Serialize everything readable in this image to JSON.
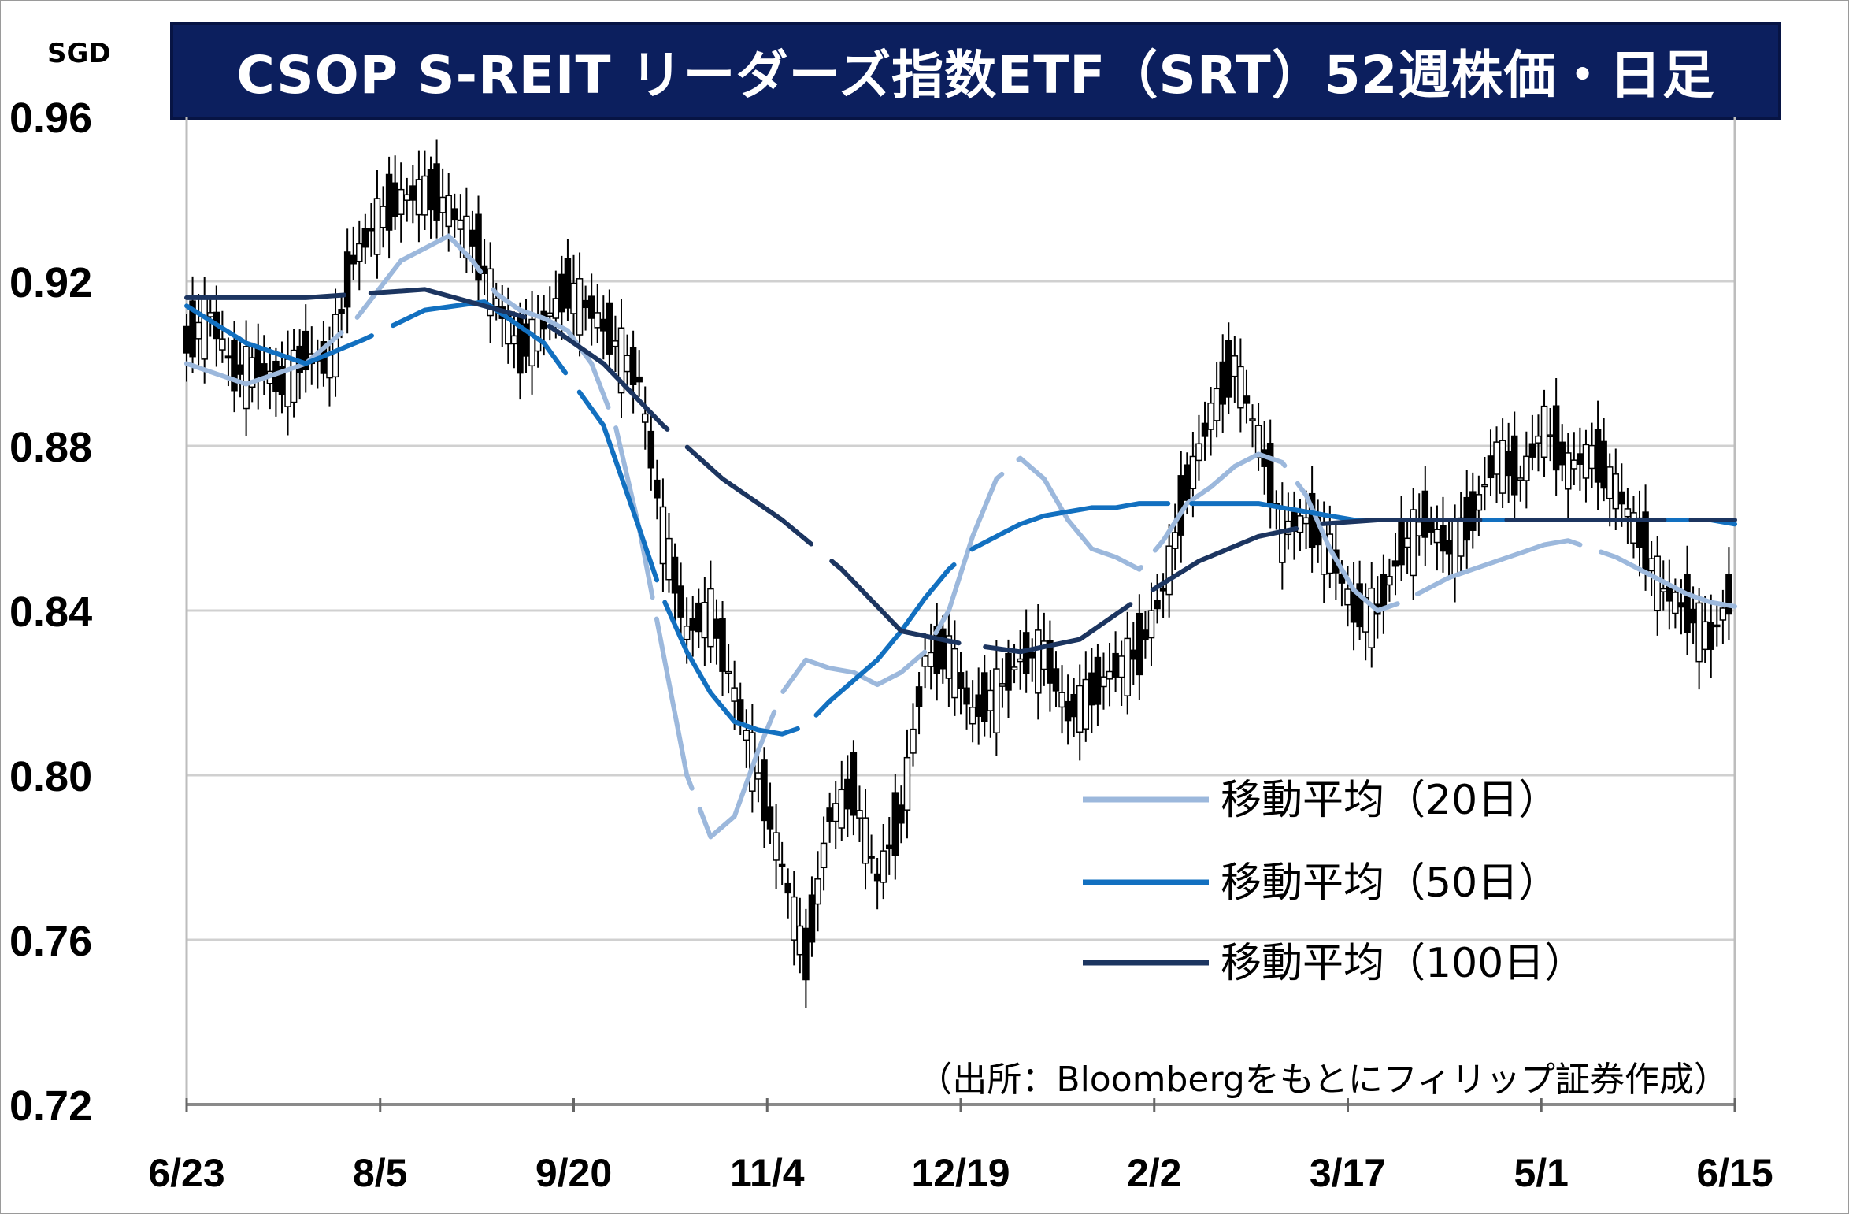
{
  "title": "CSOP S-REIT リーダーズ指数ETF（SRT）52週株価・日足",
  "unit": "SGD",
  "source": "（出所：Bloombergをもとにフィリップ証券作成）",
  "colors": {
    "title_bg": "#0c1f5e",
    "ma20": "#9cb8dc",
    "ma50": "#1270c0",
    "ma100": "#1c3560",
    "grid": "#d0d0d0"
  },
  "chart_data": {
    "type": "candlestick",
    "title": "CSOP S-REIT リーダーズ指数ETF（SRT）52週株価・日足",
    "ylabel": "SGD",
    "ylim": [
      0.72,
      0.96
    ],
    "yticks": [
      "0.96",
      "0.92",
      "0.88",
      "0.84",
      "0.80",
      "0.76",
      "0.72"
    ],
    "xticks": [
      "6/23",
      "8/5",
      "9/20",
      "11/4",
      "12/19",
      "2/2",
      "3/17",
      "5/1",
      "6/15"
    ],
    "grid": true,
    "legend_position": "bottom-right",
    "close_series": {
      "x": [
        0,
        4,
        8,
        12,
        16,
        20,
        24,
        28,
        32,
        36,
        40,
        44,
        48,
        52,
        56,
        60,
        64,
        68,
        72,
        76,
        80,
        84,
        88,
        92,
        96,
        100,
        104,
        108,
        112,
        116,
        120,
        124,
        128,
        132,
        136,
        140,
        144,
        148,
        152,
        156,
        160,
        164,
        168,
        172,
        176,
        180,
        184,
        188,
        192,
        196,
        200,
        204,
        208,
        212,
        216,
        220,
        224,
        228,
        232,
        236,
        240,
        244,
        248,
        252,
        256,
        260
      ],
      "close": [
        0.905,
        0.912,
        0.898,
        0.899,
        0.895,
        0.902,
        0.9,
        0.925,
        0.935,
        0.94,
        0.942,
        0.938,
        0.93,
        0.915,
        0.903,
        0.91,
        0.918,
        0.913,
        0.905,
        0.896,
        0.86,
        0.835,
        0.84,
        0.82,
        0.8,
        0.778,
        0.755,
        0.79,
        0.796,
        0.775,
        0.79,
        0.828,
        0.83,
        0.815,
        0.82,
        0.828,
        0.83,
        0.815,
        0.82,
        0.826,
        0.83,
        0.845,
        0.87,
        0.888,
        0.9,
        0.882,
        0.86,
        0.862,
        0.855,
        0.84,
        0.84,
        0.855,
        0.862,
        0.855,
        0.863,
        0.878,
        0.872,
        0.885,
        0.875,
        0.878,
        0.87,
        0.858,
        0.845,
        0.84,
        0.833,
        0.846
      ],
      "note": "approximate daily candles sampled every 4 trading days"
    },
    "series": [
      {
        "name": "移動平均（20日）",
        "color": "#9cb8dc",
        "x": [
          0,
          10,
          20,
          28,
          36,
          44,
          48,
          52,
          56,
          60,
          64,
          68,
          72,
          76,
          80,
          84,
          88,
          92,
          96,
          100,
          104,
          108,
          112,
          116,
          120,
          124,
          128,
          132,
          136,
          140,
          144,
          148,
          152,
          156,
          160,
          164,
          168,
          172,
          176,
          180,
          184,
          188,
          192,
          196,
          200,
          204,
          208,
          212,
          216,
          220,
          224,
          228,
          232,
          236,
          240,
          244,
          248,
          252,
          256,
          260
        ],
        "y": [
          0.9,
          0.895,
          0.9,
          0.91,
          0.925,
          0.931,
          0.925,
          0.917,
          0.913,
          0.911,
          0.908,
          0.9,
          0.885,
          0.86,
          0.83,
          0.8,
          0.785,
          0.79,
          0.806,
          0.82,
          0.828,
          0.826,
          0.825,
          0.822,
          0.825,
          0.83,
          0.84,
          0.858,
          0.872,
          0.877,
          0.872,
          0.862,
          0.855,
          0.853,
          0.85,
          0.857,
          0.866,
          0.87,
          0.875,
          0.878,
          0.876,
          0.868,
          0.855,
          0.845,
          0.84,
          0.842,
          0.845,
          0.848,
          0.85,
          0.852,
          0.854,
          0.856,
          0.857,
          0.855,
          0.853,
          0.85,
          0.847,
          0.844,
          0.842,
          0.841
        ]
      },
      {
        "name": "移動平均（50日）",
        "color": "#1270c0",
        "x": [
          0,
          10,
          20,
          30,
          40,
          50,
          60,
          70,
          76,
          80,
          84,
          88,
          92,
          96,
          100,
          104,
          108,
          112,
          116,
          120,
          124,
          128,
          132,
          136,
          140,
          144,
          148,
          152,
          156,
          160,
          164,
          168,
          172,
          176,
          180,
          184,
          188,
          192,
          196,
          200,
          204,
          208,
          212,
          216,
          220,
          224,
          228,
          232,
          236,
          240,
          244,
          248,
          252,
          256,
          260
        ],
        "y": [
          0.914,
          0.905,
          0.9,
          0.906,
          0.913,
          0.915,
          0.905,
          0.885,
          0.86,
          0.843,
          0.83,
          0.82,
          0.813,
          0.811,
          0.81,
          0.812,
          0.818,
          0.823,
          0.828,
          0.835,
          0.843,
          0.85,
          0.855,
          0.858,
          0.861,
          0.863,
          0.864,
          0.865,
          0.865,
          0.866,
          0.866,
          0.866,
          0.866,
          0.866,
          0.866,
          0.865,
          0.864,
          0.863,
          0.862,
          0.862,
          0.862,
          0.862,
          0.862,
          0.862,
          0.862,
          0.862,
          0.862,
          0.862,
          0.862,
          0.862,
          0.862,
          0.862,
          0.862,
          0.862,
          0.861
        ]
      },
      {
        "name": "移動平均（100日）",
        "color": "#1c3560",
        "x": [
          0,
          20,
          40,
          60,
          70,
          80,
          90,
          100,
          110,
          120,
          130,
          140,
          150,
          160,
          170,
          180,
          190,
          200,
          210,
          220,
          230,
          240,
          250,
          260
        ],
        "y": [
          0.916,
          0.916,
          0.918,
          0.91,
          0.9,
          0.885,
          0.872,
          0.862,
          0.85,
          0.835,
          0.832,
          0.83,
          0.833,
          0.843,
          0.852,
          0.858,
          0.861,
          0.862,
          0.862,
          0.862,
          0.862,
          0.862,
          0.862,
          0.862
        ]
      }
    ]
  },
  "legend": [
    {
      "label": "移動平均（20日）",
      "color": "#9cb8dc"
    },
    {
      "label": "移動平均（50日）",
      "color": "#1270c0"
    },
    {
      "label": "移動平均（100日）",
      "color": "#1c3560"
    }
  ]
}
